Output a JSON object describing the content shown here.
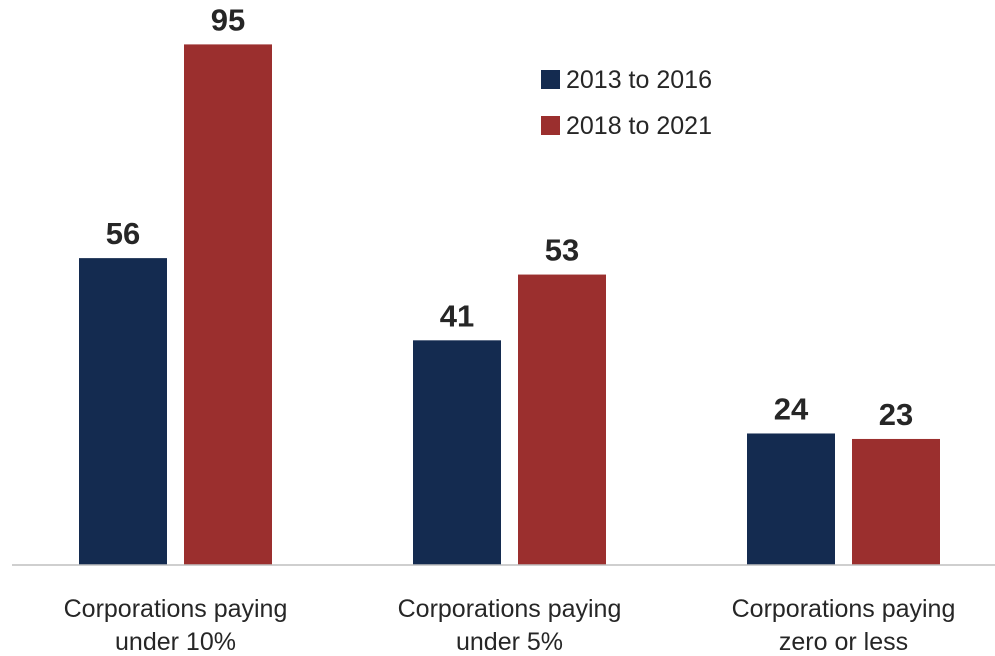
{
  "chart_data": {
    "type": "bar",
    "categories": [
      [
        "Corporations paying",
        "under 10%"
      ],
      [
        "Corporations paying",
        "under 5%"
      ],
      [
        "Corporations paying",
        "zero or less"
      ]
    ],
    "series": [
      {
        "name": "2013 to 2016",
        "values": [
          56,
          41,
          24
        ],
        "color": "#142b50"
      },
      {
        "name": "2018 to 2021",
        "values": [
          95,
          53,
          23
        ],
        "color": "#9b2f2e"
      }
    ],
    "title": "",
    "xlabel": "",
    "ylabel": "",
    "ylim": [
      0,
      100
    ],
    "grid": false,
    "legend": "top-right",
    "data_labels": true
  }
}
